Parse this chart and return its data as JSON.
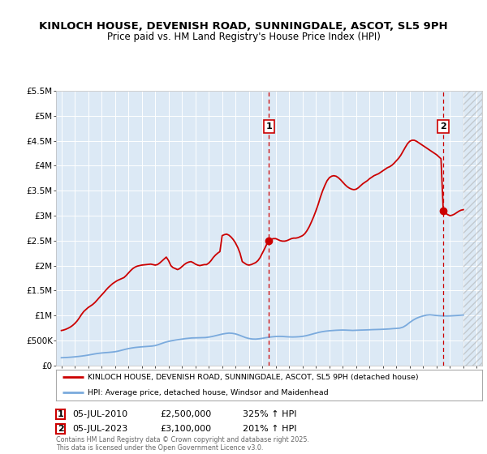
{
  "title": "KINLOCH HOUSE, DEVENISH ROAD, SUNNINGDALE, ASCOT, SL5 9PH",
  "subtitle": "Price paid vs. HM Land Registry's House Price Index (HPI)",
  "title_fontsize": 9.5,
  "subtitle_fontsize": 8.5,
  "background_color": "#ffffff",
  "plot_bg_color": "#dce9f5",
  "grid_color": "#ffffff",
  "ylim": [
    0,
    5500000
  ],
  "xlim_start": 1994.6,
  "xlim_end": 2026.4,
  "hatch_start": 2025.0,
  "yticks": [
    0,
    500000,
    1000000,
    1500000,
    2000000,
    2500000,
    3000000,
    3500000,
    4000000,
    4500000,
    5000000,
    5500000
  ],
  "ytick_labels": [
    "£0",
    "£500K",
    "£1M",
    "£1.5M",
    "£2M",
    "£2.5M",
    "£3M",
    "£3.5M",
    "£4M",
    "£4.5M",
    "£5M",
    "£5.5M"
  ],
  "sale1_x": 2010.5,
  "sale1_y": 2500000,
  "sale1_label": "1",
  "sale1_date": "05-JUL-2010",
  "sale1_price": "£2,500,000",
  "sale1_hpi": "325% ↑ HPI",
  "sale2_x": 2023.5,
  "sale2_y": 3100000,
  "sale2_label": "2",
  "sale2_date": "05-JUL-2023",
  "sale2_price": "£3,100,000",
  "sale2_hpi": "201% ↑ HPI",
  "red_line_color": "#cc0000",
  "blue_line_color": "#7aaadd",
  "vline_color": "#cc0000",
  "dot_color": "#cc0000",
  "legend_label_red": "KINLOCH HOUSE, DEVENISH ROAD, SUNNINGDALE, ASCOT, SL5 9PH (detached house)",
  "legend_label_blue": "HPI: Average price, detached house, Windsor and Maidenhead",
  "footer_text": "Contains HM Land Registry data © Crown copyright and database right 2025.\nThis data is licensed under the Open Government Licence v3.0.",
  "hpi_x": [
    1995,
    1995.25,
    1995.5,
    1995.75,
    1996,
    1996.25,
    1996.5,
    1996.75,
    1997,
    1997.25,
    1997.5,
    1997.75,
    1998,
    1998.25,
    1998.5,
    1998.75,
    1999,
    1999.25,
    1999.5,
    1999.75,
    2000,
    2000.25,
    2000.5,
    2000.75,
    2001,
    2001.25,
    2001.5,
    2001.75,
    2002,
    2002.25,
    2002.5,
    2002.75,
    2003,
    2003.25,
    2003.5,
    2003.75,
    2004,
    2004.25,
    2004.5,
    2004.75,
    2005,
    2005.25,
    2005.5,
    2005.75,
    2006,
    2006.25,
    2006.5,
    2006.75,
    2007,
    2007.25,
    2007.5,
    2007.75,
    2008,
    2008.25,
    2008.5,
    2008.75,
    2009,
    2009.25,
    2009.5,
    2009.75,
    2010,
    2010.25,
    2010.5,
    2010.75,
    2011,
    2011.25,
    2011.5,
    2011.75,
    2012,
    2012.25,
    2012.5,
    2012.75,
    2013,
    2013.25,
    2013.5,
    2013.75,
    2014,
    2014.25,
    2014.5,
    2014.75,
    2015,
    2015.25,
    2015.5,
    2015.75,
    2016,
    2016.25,
    2016.5,
    2016.75,
    2017,
    2017.25,
    2017.5,
    2017.75,
    2018,
    2018.25,
    2018.5,
    2018.75,
    2019,
    2019.25,
    2019.5,
    2019.75,
    2020,
    2020.25,
    2020.5,
    2020.75,
    2021,
    2021.25,
    2021.5,
    2021.75,
    2022,
    2022.25,
    2022.5,
    2022.75,
    2023,
    2023.25,
    2023.5,
    2023.75,
    2024,
    2024.25,
    2024.5,
    2024.75,
    2025
  ],
  "hpi_y": [
    155000,
    158000,
    162000,
    167000,
    173000,
    180000,
    188000,
    197000,
    208000,
    220000,
    232000,
    242000,
    250000,
    256000,
    261000,
    267000,
    275000,
    288000,
    305000,
    322000,
    338000,
    350000,
    360000,
    367000,
    373000,
    378000,
    383000,
    388000,
    398000,
    418000,
    442000,
    465000,
    482000,
    496000,
    508000,
    518000,
    528000,
    538000,
    545000,
    551000,
    553000,
    555000,
    557000,
    559000,
    568000,
    580000,
    596000,
    612000,
    628000,
    640000,
    648000,
    644000,
    632000,
    610000,
    584000,
    558000,
    540000,
    530000,
    528000,
    534000,
    544000,
    556000,
    566000,
    574000,
    580000,
    583000,
    581000,
    576000,
    572000,
    570000,
    572000,
    576000,
    583000,
    595000,
    612000,
    630000,
    648000,
    665000,
    678000,
    688000,
    695000,
    700000,
    705000,
    708000,
    710000,
    708000,
    705000,
    702000,
    705000,
    708000,
    710000,
    712000,
    715000,
    718000,
    720000,
    722000,
    725000,
    728000,
    732000,
    738000,
    742000,
    748000,
    768000,
    808000,
    862000,
    908000,
    946000,
    972000,
    992000,
    1008000,
    1014000,
    1008000,
    1000000,
    995000,
    992000,
    990000,
    992000,
    996000,
    1000000,
    1005000,
    1010000
  ],
  "red_x": [
    1995.0,
    1995.17,
    1995.33,
    1995.5,
    1995.67,
    1995.83,
    1996.0,
    1996.17,
    1996.33,
    1996.5,
    1996.67,
    1996.83,
    1997.0,
    1997.17,
    1997.33,
    1997.5,
    1997.67,
    1997.83,
    1998.0,
    1998.17,
    1998.33,
    1998.5,
    1998.67,
    1998.83,
    1999.0,
    1999.17,
    1999.33,
    1999.5,
    1999.67,
    1999.83,
    2000.0,
    2000.17,
    2000.33,
    2000.5,
    2000.67,
    2000.83,
    2001.0,
    2001.17,
    2001.33,
    2001.5,
    2001.67,
    2001.83,
    2002.0,
    2002.17,
    2002.33,
    2002.5,
    2002.67,
    2002.83,
    2003.0,
    2003.17,
    2003.33,
    2003.5,
    2003.67,
    2003.83,
    2004.0,
    2004.17,
    2004.33,
    2004.5,
    2004.67,
    2004.83,
    2005.0,
    2005.17,
    2005.33,
    2005.5,
    2005.67,
    2005.83,
    2006.0,
    2006.17,
    2006.33,
    2006.5,
    2006.67,
    2006.83,
    2007.0,
    2007.17,
    2007.33,
    2007.5,
    2007.67,
    2007.83,
    2008.0,
    2008.17,
    2008.33,
    2008.5,
    2008.67,
    2008.83,
    2009.0,
    2009.17,
    2009.33,
    2009.5,
    2009.67,
    2009.83,
    2010.0,
    2010.17,
    2010.33,
    2010.5,
    2010.67,
    2010.83,
    2011.0,
    2011.17,
    2011.33,
    2011.5,
    2011.67,
    2011.83,
    2012.0,
    2012.17,
    2012.33,
    2012.5,
    2012.67,
    2012.83,
    2013.0,
    2013.17,
    2013.33,
    2013.5,
    2013.67,
    2013.83,
    2014.0,
    2014.17,
    2014.33,
    2014.5,
    2014.67,
    2014.83,
    2015.0,
    2015.17,
    2015.33,
    2015.5,
    2015.67,
    2015.83,
    2016.0,
    2016.17,
    2016.33,
    2016.5,
    2016.67,
    2016.83,
    2017.0,
    2017.17,
    2017.33,
    2017.5,
    2017.67,
    2017.83,
    2018.0,
    2018.17,
    2018.33,
    2018.5,
    2018.67,
    2018.83,
    2019.0,
    2019.17,
    2019.33,
    2019.5,
    2019.67,
    2019.83,
    2020.0,
    2020.17,
    2020.33,
    2020.5,
    2020.67,
    2020.83,
    2021.0,
    2021.17,
    2021.33,
    2021.5,
    2021.67,
    2021.83,
    2022.0,
    2022.17,
    2022.33,
    2022.5,
    2022.67,
    2022.83,
    2023.0,
    2023.17,
    2023.33,
    2023.5,
    2023.67,
    2023.83,
    2024.0,
    2024.17,
    2024.33,
    2024.5,
    2024.67,
    2024.83,
    2025.0
  ],
  "red_y": [
    700000,
    710000,
    725000,
    745000,
    770000,
    800000,
    840000,
    890000,
    950000,
    1020000,
    1080000,
    1120000,
    1160000,
    1190000,
    1220000,
    1260000,
    1310000,
    1360000,
    1410000,
    1460000,
    1510000,
    1560000,
    1600000,
    1640000,
    1670000,
    1700000,
    1720000,
    1740000,
    1760000,
    1800000,
    1850000,
    1900000,
    1940000,
    1970000,
    1990000,
    2000000,
    2010000,
    2015000,
    2020000,
    2025000,
    2030000,
    2020000,
    2010000,
    2020000,
    2050000,
    2090000,
    2130000,
    2170000,
    2100000,
    2000000,
    1960000,
    1940000,
    1920000,
    1940000,
    1980000,
    2020000,
    2050000,
    2070000,
    2080000,
    2060000,
    2030000,
    2010000,
    2000000,
    2010000,
    2020000,
    2020000,
    2050000,
    2100000,
    2160000,
    2210000,
    2250000,
    2280000,
    2600000,
    2620000,
    2630000,
    2610000,
    2570000,
    2520000,
    2450000,
    2360000,
    2250000,
    2080000,
    2050000,
    2020000,
    2010000,
    2020000,
    2040000,
    2060000,
    2100000,
    2160000,
    2250000,
    2340000,
    2430000,
    2500000,
    2530000,
    2540000,
    2540000,
    2520000,
    2500000,
    2490000,
    2490000,
    2500000,
    2520000,
    2540000,
    2550000,
    2550000,
    2560000,
    2580000,
    2600000,
    2640000,
    2700000,
    2780000,
    2880000,
    2980000,
    3100000,
    3230000,
    3370000,
    3500000,
    3610000,
    3700000,
    3760000,
    3790000,
    3800000,
    3790000,
    3760000,
    3720000,
    3670000,
    3620000,
    3580000,
    3550000,
    3530000,
    3520000,
    3530000,
    3560000,
    3600000,
    3640000,
    3670000,
    3700000,
    3740000,
    3770000,
    3800000,
    3820000,
    3840000,
    3870000,
    3900000,
    3930000,
    3960000,
    3980000,
    4010000,
    4050000,
    4100000,
    4150000,
    4210000,
    4290000,
    4370000,
    4440000,
    4490000,
    4510000,
    4510000,
    4490000,
    4460000,
    4430000,
    4400000,
    4370000,
    4340000,
    4310000,
    4280000,
    4250000,
    4220000,
    4180000,
    4140000,
    3100000,
    3050000,
    3020000,
    3000000,
    3010000,
    3030000,
    3060000,
    3090000,
    3110000,
    3120000
  ]
}
